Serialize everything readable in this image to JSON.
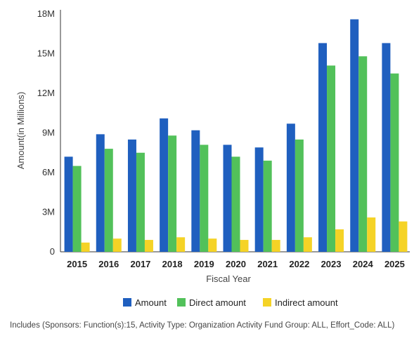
{
  "chart_data": {
    "type": "bar",
    "xlabel": "Fiscal Year",
    "ylabel": "Amount(in Millions)",
    "categories": [
      "2015",
      "2016",
      "2017",
      "2018",
      "2019",
      "2020",
      "2021",
      "2022",
      "2023",
      "2024",
      "2025"
    ],
    "y_ticks": [
      "0",
      "3M",
      "6M",
      "9M",
      "12M",
      "15M",
      "18M"
    ],
    "ylim": [
      0,
      18
    ],
    "grid": false,
    "legend_position": "bottom",
    "series": [
      {
        "name": "Amount",
        "color": "#1f5fbf",
        "values": [
          7.2,
          8.9,
          8.5,
          10.1,
          9.2,
          8.1,
          7.9,
          9.7,
          15.8,
          17.6,
          15.8
        ]
      },
      {
        "name": "Direct amount",
        "color": "#52c15a",
        "values": [
          6.5,
          7.8,
          7.5,
          8.8,
          8.1,
          7.2,
          6.9,
          8.5,
          14.1,
          14.8,
          13.5
        ]
      },
      {
        "name": "Indirect amount",
        "color": "#f5d326",
        "values": [
          0.7,
          1.0,
          0.9,
          1.1,
          1.0,
          0.9,
          0.9,
          1.1,
          1.7,
          2.6,
          2.3
        ]
      }
    ]
  },
  "footnote": "Includes (Sponsors: Function(s):15, Activity Type: Organization Activity Fund Group: ALL, Effort_Code: ALL)"
}
